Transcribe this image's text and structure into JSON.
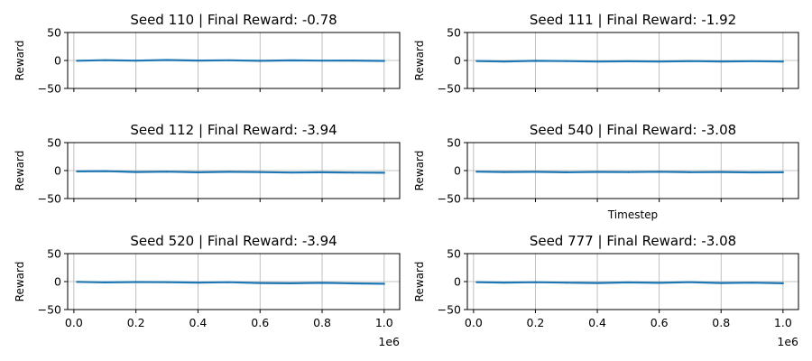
{
  "chart_data": [
    {
      "type": "line",
      "title": "Seed 110 | Final Reward: -0.78",
      "ylabel": "Reward",
      "xlabel": "",
      "xlim": [
        -20000,
        1050000
      ],
      "ylim": [
        -50,
        50
      ],
      "yticks": [
        "50",
        "0",
        "−50"
      ],
      "xticks": [],
      "x_offset_label": "",
      "grid": true,
      "color": "#1f77b4",
      "x": [
        10000,
        100000,
        200000,
        300000,
        400000,
        500000,
        600000,
        700000,
        800000,
        900000,
        1000000
      ],
      "y": [
        -0.5,
        0.5,
        -0.3,
        0.8,
        -0.2,
        0.3,
        -0.6,
        0.1,
        -0.4,
        -0.2,
        -0.78
      ]
    },
    {
      "type": "line",
      "title": "Seed 111 | Final Reward: -1.92",
      "ylabel": "Reward",
      "xlabel": "",
      "xlim": [
        -20000,
        1050000
      ],
      "ylim": [
        -50,
        50
      ],
      "yticks": [
        "50",
        "0",
        "−50"
      ],
      "xticks": [],
      "x_offset_label": "",
      "grid": true,
      "color": "#1f77b4",
      "x": [
        10000,
        100000,
        200000,
        300000,
        400000,
        500000,
        600000,
        700000,
        800000,
        900000,
        1000000
      ],
      "y": [
        -1.0,
        -1.8,
        -0.6,
        -1.2,
        -2.0,
        -1.4,
        -1.9,
        -1.1,
        -1.7,
        -1.3,
        -1.92
      ]
    },
    {
      "type": "line",
      "title": "Seed 112 | Final Reward: -3.94",
      "ylabel": "Reward",
      "xlabel": "",
      "xlim": [
        -20000,
        1050000
      ],
      "ylim": [
        -50,
        50
      ],
      "yticks": [
        "50",
        "0",
        "−50"
      ],
      "xticks": [],
      "x_offset_label": "",
      "grid": true,
      "color": "#1f77b4",
      "x": [
        10000,
        100000,
        200000,
        300000,
        400000,
        500000,
        600000,
        700000,
        800000,
        900000,
        1000000
      ],
      "y": [
        -1.5,
        -1.0,
        -2.5,
        -2.0,
        -3.0,
        -2.2,
        -2.8,
        -3.5,
        -3.0,
        -3.6,
        -3.94
      ]
    },
    {
      "type": "line",
      "title": "Seed 540 | Final Reward: -3.08",
      "ylabel": "Reward",
      "xlabel": "Timestep",
      "xlim": [
        -20000,
        1050000
      ],
      "ylim": [
        -50,
        50
      ],
      "yticks": [
        "50",
        "0",
        "−50"
      ],
      "xticks": [],
      "x_offset_label": "",
      "grid": true,
      "color": "#1f77b4",
      "x": [
        10000,
        100000,
        200000,
        300000,
        400000,
        500000,
        600000,
        700000,
        800000,
        900000,
        1000000
      ],
      "y": [
        -2.0,
        -2.6,
        -2.2,
        -3.0,
        -2.4,
        -2.8,
        -2.1,
        -2.9,
        -2.5,
        -3.2,
        -3.08
      ]
    },
    {
      "type": "line",
      "title": "Seed 520 | Final Reward: -3.94",
      "ylabel": "Reward",
      "xlabel": "",
      "xlim": [
        -20000,
        1050000
      ],
      "ylim": [
        -50,
        50
      ],
      "yticks": [
        "50",
        "0",
        "−50"
      ],
      "xticks": [
        "0.0",
        "0.2",
        "0.4",
        "0.6",
        "0.8",
        "1.0"
      ],
      "x_offset_label": "1e6",
      "grid": true,
      "color": "#1f77b4",
      "x": [
        10000,
        100000,
        200000,
        300000,
        400000,
        500000,
        600000,
        700000,
        800000,
        900000,
        1000000
      ],
      "y": [
        -0.5,
        -1.5,
        -0.8,
        -1.0,
        -1.8,
        -1.2,
        -2.5,
        -3.0,
        -2.2,
        -3.2,
        -3.94
      ]
    },
    {
      "type": "line",
      "title": "Seed 777 | Final Reward: -3.08",
      "ylabel": "Reward",
      "xlabel": "",
      "xlim": [
        -20000,
        1050000
      ],
      "ylim": [
        -50,
        50
      ],
      "yticks": [
        "50",
        "0",
        "−50"
      ],
      "xticks": [
        "0.0",
        "0.2",
        "0.4",
        "0.6",
        "0.8",
        "1.0"
      ],
      "x_offset_label": "1e6",
      "grid": true,
      "color": "#1f77b4",
      "x": [
        10000,
        100000,
        200000,
        300000,
        400000,
        500000,
        600000,
        700000,
        800000,
        900000,
        1000000
      ],
      "y": [
        -1.0,
        -1.8,
        -1.2,
        -2.0,
        -2.5,
        -1.5,
        -2.2,
        -1.0,
        -2.6,
        -2.0,
        -3.08
      ]
    }
  ]
}
